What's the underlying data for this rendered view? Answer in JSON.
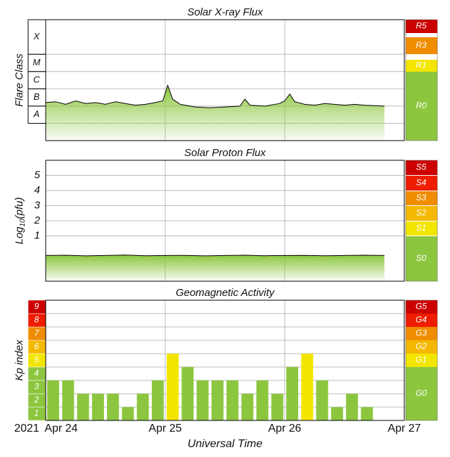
{
  "chart_data": [
    {
      "type": "area",
      "title": "Solar X-ray Flux",
      "y_label": "Flare Class",
      "x": [
        0,
        2,
        4,
        6,
        8,
        10,
        12,
        14,
        16,
        18,
        20,
        22,
        23.5,
        24.5,
        25.5,
        27,
        30,
        33,
        36,
        39,
        40,
        41,
        44,
        47,
        48,
        49,
        50,
        52,
        54,
        56,
        58,
        60,
        62,
        64,
        68
      ],
      "values": [
        -6.8,
        -6.75,
        -6.9,
        -6.7,
        -6.85,
        -6.8,
        -6.9,
        -6.75,
        -6.85,
        -6.95,
        -6.9,
        -6.8,
        -6.7,
        -5.8,
        -6.6,
        -6.9,
        -7.05,
        -7.1,
        -7.05,
        -7.0,
        -6.6,
        -6.95,
        -7.0,
        -6.85,
        -6.7,
        -6.3,
        -6.75,
        -6.9,
        -6.95,
        -6.85,
        -6.9,
        -6.95,
        -6.9,
        -6.95,
        -7.0
      ],
      "color": "#8cc63f",
      "line_color": "#000000",
      "xlim": [
        0,
        72
      ],
      "xticks": [
        24,
        48
      ],
      "ylim": [
        -9,
        -2
      ],
      "yticks": [
        {
          "value": -8,
          "label": "A"
        },
        {
          "value": -7,
          "label": "B"
        },
        {
          "value": -6,
          "label": "C"
        },
        {
          "value": -5,
          "label": "M"
        },
        {
          "value": -4,
          "label": "X"
        }
      ],
      "scale": [
        {
          "label": "R5",
          "color": "#cc0000"
        },
        {
          "label": "R3",
          "color": "#f08c00"
        },
        {
          "label": "R1",
          "color": "#f2e600"
        },
        {
          "label": "R0",
          "color": "#8cc63f"
        }
      ]
    },
    {
      "type": "area",
      "title": "Solar Proton Flux",
      "y_label": [
        "Log",
        "10",
        "(pfu)"
      ],
      "x": [
        0,
        4,
        8,
        12,
        16,
        20,
        24,
        28,
        32,
        36,
        40,
        44,
        48,
        52,
        56,
        60,
        64,
        68
      ],
      "values": [
        -0.3,
        -0.28,
        -0.32,
        -0.3,
        -0.27,
        -0.31,
        -0.3,
        -0.29,
        -0.32,
        -0.3,
        -0.28,
        -0.31,
        -0.3,
        -0.29,
        -0.31,
        -0.3,
        -0.28,
        -0.3
      ],
      "color": "#8cc63f",
      "line_color": "#000000",
      "xlim": [
        0,
        72
      ],
      "xticks": [
        24,
        48
      ],
      "ylim": [
        -2,
        6
      ],
      "yticks": [
        1,
        2,
        3,
        4,
        5
      ],
      "scale": [
        {
          "label": "S5",
          "color": "#cc0000"
        },
        {
          "label": "S4",
          "color": "#ee1c00"
        },
        {
          "label": "S3",
          "color": "#f08c00"
        },
        {
          "label": "S2",
          "color": "#f5b800"
        },
        {
          "label": "S1",
          "color": "#f2e600"
        },
        {
          "label": "S0",
          "color": "#8cc63f"
        }
      ]
    },
    {
      "type": "bar",
      "title": "Geomagnetic Activity",
      "y_label": "Kp index",
      "x_label": "Universal Time",
      "year": "2021",
      "x": [
        1.5,
        4.5,
        7.5,
        10.5,
        13.5,
        16.5,
        19.5,
        22.5,
        25.5,
        28.5,
        31.5,
        34.5,
        37.5,
        40.5,
        43.5,
        46.5,
        49.5,
        52.5,
        55.5,
        58.5,
        61.5,
        64.5
      ],
      "values": [
        3,
        3,
        2,
        2,
        2,
        1,
        2,
        3,
        5,
        4,
        3,
        3,
        3,
        2,
        3,
        2,
        4,
        5,
        3,
        1,
        2,
        1
      ],
      "xlim": [
        0,
        72
      ],
      "xticks": [
        {
          "value": 0,
          "label": "Apr 24"
        },
        {
          "value": 24,
          "label": "Apr 25"
        },
        {
          "value": 48,
          "label": "Apr 26"
        },
        {
          "value": 72,
          "label": "Apr 27"
        }
      ],
      "ylim": [
        0,
        9
      ],
      "yticks": [
        1,
        2,
        3,
        4,
        5,
        6,
        7,
        8,
        9
      ],
      "kp_colors": [
        "#8cc63f",
        "#8cc63f",
        "#8cc63f",
        "#8cc63f",
        "#f2e600",
        "#f5b800",
        "#f08c00",
        "#ee1c00",
        "#cc0000"
      ],
      "scale": [
        {
          "label": "G5",
          "color": "#cc0000"
        },
        {
          "label": "G4",
          "color": "#ee1c00"
        },
        {
          "label": "G3",
          "color": "#f08c00"
        },
        {
          "label": "G2",
          "color": "#f5b800"
        },
        {
          "label": "G1",
          "color": "#f2e600"
        },
        {
          "label": "G0",
          "color": "#8cc63f"
        }
      ]
    }
  ]
}
